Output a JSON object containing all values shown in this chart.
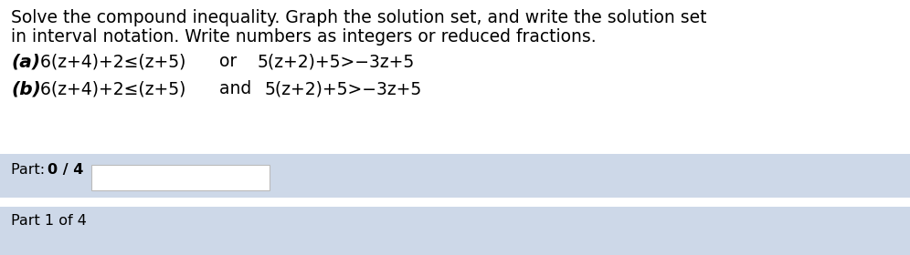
{
  "title_line1": "Solve the compound inequality. Graph the solution set, and write the solution set",
  "title_line2": "in interval notation. Write numbers as integers or reduced fractions.",
  "part_a_label": "(a)",
  "part_a_ineq1": " 6(z+4)+2≤(z+5)",
  "part_a_connector": "  or  ",
  "part_a_ineq2": "5(z+2)+5>−3z+5",
  "part_b_label": "(b)",
  "part_b_ineq1": " 6(z+4)+2≤(z+5)",
  "part_b_connector": "  and  ",
  "part_b_ineq2": "5(z+2)+5>−3z+5",
  "part_label": "Part: ",
  "part_bold": "0 / 4",
  "part_1_label": "Part 1 of 4",
  "bg_color": "#ffffff",
  "box1_bg_color": "#cdd8e8",
  "box2_bg_color": "#cdd8e8",
  "text_color": "#000000",
  "title_fontsize": 13.5,
  "body_fontsize": 13.5,
  "part_fontsize": 11.5,
  "input_box_color": "#ffffff",
  "input_box_edge": "#bbbbbb"
}
